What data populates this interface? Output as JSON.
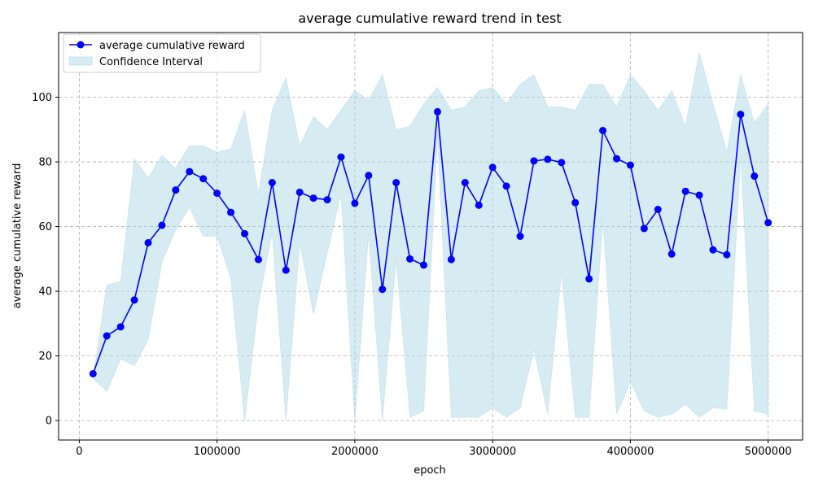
{
  "chart_data": {
    "type": "line",
    "title": "average cumulative reward trend in test",
    "xlabel": "epoch",
    "ylabel": "average cumulative reward",
    "xlim": [
      -150000,
      5250000
    ],
    "ylim": [
      -6,
      120
    ],
    "xticks": [
      0,
      1000000,
      2000000,
      3000000,
      4000000,
      5000000
    ],
    "xtick_labels": [
      "0",
      "1000000",
      "2000000",
      "3000000",
      "4000000",
      "5000000"
    ],
    "yticks": [
      0,
      20,
      40,
      60,
      80,
      100
    ],
    "ytick_labels": [
      "0",
      "20",
      "40",
      "60",
      "80",
      "100"
    ],
    "grid": true,
    "legend_position": "upper-left",
    "x": [
      100000,
      200000,
      300000,
      400000,
      500000,
      600000,
      700000,
      800000,
      900000,
      1000000,
      1100000,
      1200000,
      1300000,
      1400000,
      1500000,
      1600000,
      1700000,
      1800000,
      1900000,
      2000000,
      2100000,
      2200000,
      2300000,
      2400000,
      2500000,
      2600000,
      2700000,
      2800000,
      2900000,
      3000000,
      3100000,
      3200000,
      3300000,
      3400000,
      3500000,
      3600000,
      3700000,
      3800000,
      3900000,
      4000000,
      4100000,
      4200000,
      4300000,
      4400000,
      4500000,
      4600000,
      4700000,
      4800000,
      4900000,
      5000000
    ],
    "series": [
      {
        "name": "average cumulative reward",
        "color": "#0000ff",
        "values": [
          14.5,
          26.2,
          29.0,
          37.3,
          55.0,
          60.4,
          71.3,
          77.0,
          74.8,
          70.3,
          64.4,
          57.8,
          49.8,
          73.6,
          46.5,
          70.6,
          68.8,
          68.3,
          81.5,
          67.2,
          75.8,
          40.6,
          73.6,
          50.0,
          48.1,
          95.5,
          49.8,
          73.6,
          66.6,
          78.3,
          72.5,
          57.0,
          80.3,
          80.8,
          79.8,
          67.4,
          43.8,
          89.7,
          81.0,
          79.0,
          59.4,
          65.3,
          51.5,
          70.9,
          69.7,
          52.8,
          51.3,
          94.7,
          75.6,
          61.2
        ]
      }
    ],
    "confidence_interval": {
      "name": "Confidence Interval",
      "color": "#add8e6",
      "upper": [
        13,
        42,
        43,
        81,
        75,
        82,
        78,
        85,
        85,
        83,
        84,
        96,
        70,
        96,
        106,
        85,
        94,
        90,
        96,
        102,
        99,
        107,
        90,
        91,
        98,
        103,
        96,
        97,
        102,
        103,
        98,
        104,
        107,
        97,
        97,
        96,
        104,
        104,
        97,
        107,
        102,
        96,
        102,
        91,
        114,
        98,
        83,
        107,
        92,
        98
      ],
      "lower": [
        13,
        9,
        19,
        17,
        25,
        49,
        59,
        66,
        57,
        57,
        44,
        0,
        36,
        58,
        0,
        55,
        33,
        52,
        70,
        0,
        58,
        0,
        50,
        1,
        3,
        88,
        1,
        1,
        1,
        4,
        1,
        4,
        22,
        2,
        46,
        1,
        1,
        62,
        2,
        12,
        3,
        1,
        2,
        5,
        1,
        4,
        3.5,
        82,
        3,
        2
      ]
    }
  }
}
